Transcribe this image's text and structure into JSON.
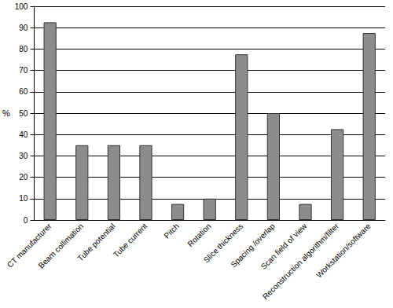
{
  "chart_data": {
    "type": "bar",
    "categories": [
      "CT manufacturer",
      "Beam collimation",
      "Tube potential",
      "Tube current",
      "Pitch",
      "Rotation",
      "Slice thickness",
      "Spacing /overlap",
      "Scan field of view",
      "Reconstruction algorithm/filter",
      "Workstation/software"
    ],
    "values": [
      92.5,
      35,
      35,
      35,
      7.5,
      10,
      77.5,
      50,
      7.5,
      42.5,
      87.5
    ],
    "color": "#8c8c8c",
    "y_label": "%",
    "ylim": [
      0,
      100
    ],
    "yticks": [
      0,
      10,
      20,
      30,
      40,
      50,
      60,
      70,
      80,
      90,
      100
    ],
    "grid": true
  }
}
